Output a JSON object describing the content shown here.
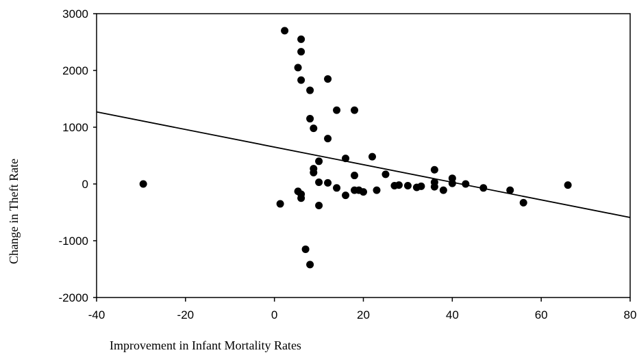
{
  "chart_data": {
    "type": "scatter",
    "title": "",
    "xlabel": "Improvement in Infant Mortality Rates",
    "ylabel": "Change in Theft Rate",
    "xlim": [
      -40,
      80
    ],
    "ylim": [
      -2000,
      3000
    ],
    "xticks": [
      -40,
      -20,
      0,
      20,
      40,
      60,
      80
    ],
    "yticks": [
      -2000,
      -1000,
      0,
      1000,
      2000,
      3000
    ],
    "grid": false,
    "legend": "none",
    "points": [
      {
        "x": -29.5,
        "y": 0
      },
      {
        "x": 1.3,
        "y": -350
      },
      {
        "x": 2.3,
        "y": 2700
      },
      {
        "x": 5.3,
        "y": 2050
      },
      {
        "x": 5.3,
        "y": -130
      },
      {
        "x": 6.0,
        "y": 2550
      },
      {
        "x": 6.0,
        "y": 2330
      },
      {
        "x": 6.0,
        "y": 1830
      },
      {
        "x": 6.0,
        "y": -180
      },
      {
        "x": 6.0,
        "y": -250
      },
      {
        "x": 7.0,
        "y": -1150
      },
      {
        "x": 8.0,
        "y": 1650
      },
      {
        "x": 8.0,
        "y": 1150
      },
      {
        "x": 8.0,
        "y": -1420
      },
      {
        "x": 8.8,
        "y": 980
      },
      {
        "x": 8.8,
        "y": 270
      },
      {
        "x": 8.8,
        "y": 200
      },
      {
        "x": 10.0,
        "y": 400
      },
      {
        "x": 10.0,
        "y": 30
      },
      {
        "x": 10.0,
        "y": -380
      },
      {
        "x": 12.0,
        "y": 1850
      },
      {
        "x": 12.0,
        "y": 800
      },
      {
        "x": 12.0,
        "y": 20
      },
      {
        "x": 14.0,
        "y": 1300
      },
      {
        "x": 14.0,
        "y": -70
      },
      {
        "x": 16.0,
        "y": 450
      },
      {
        "x": 16.0,
        "y": -200
      },
      {
        "x": 18.0,
        "y": 1300
      },
      {
        "x": 18.0,
        "y": 150
      },
      {
        "x": 18.0,
        "y": -110
      },
      {
        "x": 19.0,
        "y": -110
      },
      {
        "x": 20.0,
        "y": -140
      },
      {
        "x": 22.0,
        "y": 480
      },
      {
        "x": 23.0,
        "y": -110
      },
      {
        "x": 25.0,
        "y": 170
      },
      {
        "x": 27.0,
        "y": -30
      },
      {
        "x": 28.0,
        "y": -20
      },
      {
        "x": 30.0,
        "y": -30
      },
      {
        "x": 32.0,
        "y": -60
      },
      {
        "x": 33.0,
        "y": -40
      },
      {
        "x": 36.0,
        "y": 250
      },
      {
        "x": 36.0,
        "y": 30
      },
      {
        "x": 36.0,
        "y": -50
      },
      {
        "x": 38.0,
        "y": -110
      },
      {
        "x": 40.0,
        "y": 100
      },
      {
        "x": 40.0,
        "y": 10
      },
      {
        "x": 43.0,
        "y": 0
      },
      {
        "x": 47.0,
        "y": -70
      },
      {
        "x": 53.0,
        "y": -110
      },
      {
        "x": 56.0,
        "y": -330
      },
      {
        "x": 66.0,
        "y": -20
      }
    ],
    "fit_line": {
      "x": [
        -40,
        80
      ],
      "y": [
        1270,
        -590
      ]
    }
  }
}
